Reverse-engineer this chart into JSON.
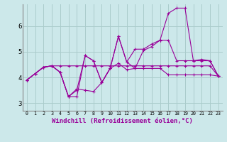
{
  "background_color": "#cce8ea",
  "grid_color": "#aacccc",
  "line_color": "#990099",
  "xlabel": "Windchill (Refroidissement éolien,°C)",
  "xlabel_fontsize": 6.5,
  "ylabel_ticks": [
    3,
    4,
    5,
    6
  ],
  "xtick_labels": [
    "0",
    "1",
    "2",
    "3",
    "4",
    "5",
    "6",
    "7",
    "8",
    "9",
    "10",
    "11",
    "12",
    "13",
    "14",
    "15",
    "16",
    "17",
    "18",
    "19",
    "20",
    "21",
    "22",
    "23"
  ],
  "xlim": [
    -0.5,
    23.5
  ],
  "ylim": [
    2.7,
    6.85
  ],
  "series": [
    [
      3.9,
      4.15,
      4.4,
      4.45,
      4.45,
      4.45,
      4.45,
      4.45,
      4.45,
      4.45,
      4.45,
      4.45,
      4.45,
      4.45,
      4.45,
      4.45,
      4.45,
      4.45,
      4.45,
      4.45,
      4.45,
      4.45,
      4.45,
      4.05
    ],
    [
      3.9,
      4.15,
      4.4,
      4.45,
      4.2,
      3.25,
      3.25,
      4.85,
      4.65,
      3.8,
      4.35,
      4.55,
      4.3,
      4.35,
      4.35,
      4.35,
      4.35,
      4.1,
      4.1,
      4.1,
      4.1,
      4.1,
      4.1,
      4.05
    ],
    [
      3.9,
      4.15,
      4.4,
      4.45,
      4.2,
      3.25,
      3.55,
      3.5,
      3.45,
      3.8,
      4.35,
      5.6,
      4.6,
      4.35,
      5.05,
      5.2,
      5.45,
      5.45,
      4.65,
      4.65,
      4.65,
      4.65,
      4.65,
      4.05
    ],
    [
      3.9,
      4.15,
      4.4,
      4.45,
      4.2,
      3.25,
      3.5,
      4.85,
      4.65,
      3.8,
      4.35,
      5.6,
      4.6,
      5.1,
      5.1,
      5.3,
      5.45,
      6.5,
      6.7,
      6.7,
      4.65,
      4.7,
      4.65,
      4.05
    ]
  ]
}
